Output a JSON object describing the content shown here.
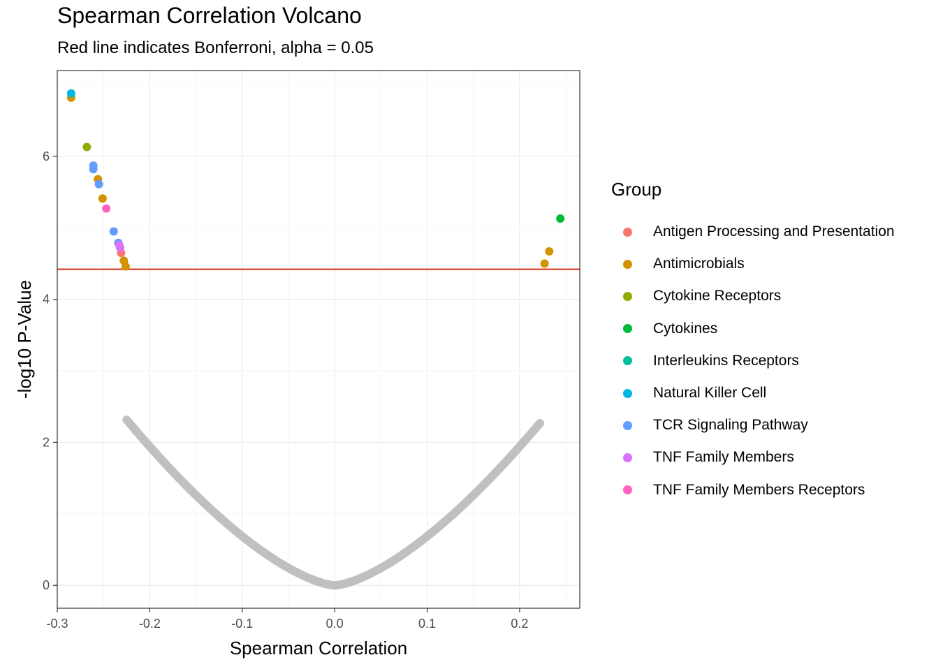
{
  "chart_data": {
    "type": "scatter",
    "title": "Spearman Correlation Volcano",
    "subtitle": "Red line indicates Bonferroni, alpha = 0.05",
    "xlabel": "Spearman Correlation",
    "ylabel": "-log10 P-Value",
    "xlim": [
      -0.3,
      0.265
    ],
    "ylim": [
      -0.32,
      7.2
    ],
    "xticks": [
      -0.3,
      -0.2,
      -0.1,
      0.0,
      0.1,
      0.2
    ],
    "xtick_labels": [
      "-0.3",
      "-0.2",
      "-0.1",
      "0.0",
      "0.1",
      "0.2"
    ],
    "yticks": [
      0,
      2,
      4,
      6
    ],
    "ytick_labels": [
      "0",
      "2",
      "4",
      "6"
    ],
    "grid": true,
    "threshold": {
      "y": 4.42,
      "color": "#d6432f",
      "label": "Bonferroni, alpha = 0.05"
    },
    "background_series": {
      "color": "#c0c0c0",
      "relation": "y = -log10(p) for Spearman rho, n ~= 300",
      "negative_range": [
        -0.225,
        0.0
      ],
      "positive_range": [
        0.0,
        0.222
      ]
    },
    "legend": {
      "title": "Group",
      "position": "right",
      "entries": [
        {
          "name": "Antigen Processing and Presentation",
          "color": "#F8766D"
        },
        {
          "name": "Antimicrobials",
          "color": "#D39200"
        },
        {
          "name": "Cytokine Receptors",
          "color": "#93AA00"
        },
        {
          "name": "Cytokines",
          "color": "#00BA38"
        },
        {
          "name": "Interleukins Receptors",
          "color": "#00C19F"
        },
        {
          "name": "Natural Killer Cell",
          "color": "#00B9E3"
        },
        {
          "name": "TCR Signaling Pathway",
          "color": "#619CFF"
        },
        {
          "name": "TNF Family Members",
          "color": "#DB72FB"
        },
        {
          "name": "TNF Family Members Receptors",
          "color": "#FF61C3"
        }
      ]
    },
    "series": [
      {
        "name": "Antigen Processing and Presentation",
        "color": "#F8766D",
        "x": [
          -0.231
        ],
        "y": [
          4.65
        ]
      },
      {
        "name": "Antimicrobials",
        "color": "#D39200",
        "x": [
          -0.285,
          -0.256,
          -0.251,
          -0.228,
          -0.226,
          0.227,
          0.232
        ],
        "y": [
          6.82,
          5.68,
          5.41,
          4.54,
          4.46,
          4.5,
          4.67
        ]
      },
      {
        "name": "Cytokine Receptors",
        "color": "#93AA00",
        "x": [
          -0.268
        ],
        "y": [
          6.13
        ]
      },
      {
        "name": "Cytokines",
        "color": "#00BA38",
        "x": [
          0.244
        ],
        "y": [
          5.13
        ]
      },
      {
        "name": "Natural Killer Cell",
        "color": "#00B9E3",
        "x": [
          -0.285
        ],
        "y": [
          6.88
        ]
      },
      {
        "name": "TCR Signaling Pathway",
        "color": "#619CFF",
        "x": [
          -0.261,
          -0.261,
          -0.255,
          -0.239,
          -0.234
        ],
        "y": [
          5.87,
          5.82,
          5.61,
          4.95,
          4.79
        ]
      },
      {
        "name": "TNF Family Members",
        "color": "#DB72FB",
        "x": [
          -0.233,
          -0.232
        ],
        "y": [
          4.76,
          4.72
        ]
      },
      {
        "name": "TNF Family Members Receptors",
        "color": "#FF61C3",
        "x": [
          -0.247
        ],
        "y": [
          5.27
        ]
      }
    ]
  }
}
